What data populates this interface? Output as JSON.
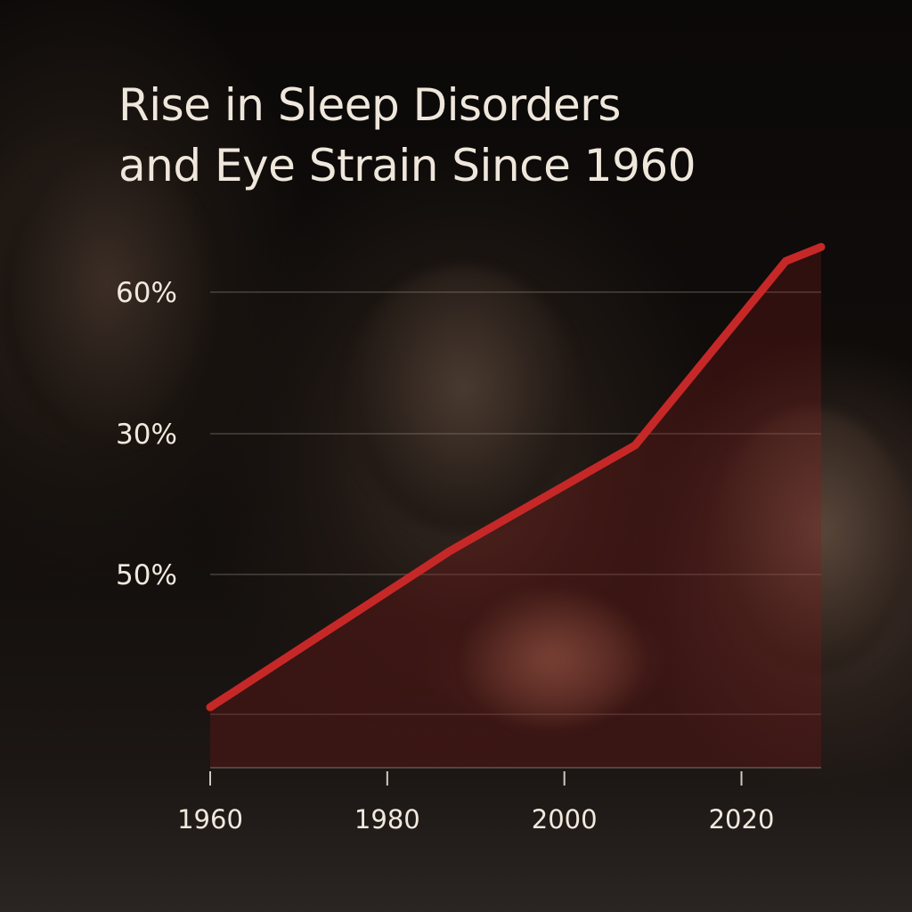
{
  "colors": {
    "line": "#c62828",
    "area": "#8b1a1a",
    "grid": "#8a7f76",
    "text": "#f1e9de",
    "background": "#0b0908"
  },
  "chart_data": {
    "type": "line",
    "title": "Rise in Sleep Disorders and Eye Strain Since 1960",
    "title_lines": [
      "Rise in Sleep Disorders",
      "and Eye Strain Since 1960"
    ],
    "xlabel": "",
    "ylabel": "",
    "x_ticks": [
      "1960",
      "1980",
      "2000",
      "2020"
    ],
    "y_ticks": [
      "60%",
      "30%",
      "50%"
    ],
    "grid": true,
    "area_fill": true,
    "series": [
      {
        "x": [
          1960,
          1987,
          2008,
          2025,
          2029
        ],
        "y": [
          0.05,
          1.15,
          1.9,
          3.2,
          3.3
        ]
      }
    ]
  }
}
